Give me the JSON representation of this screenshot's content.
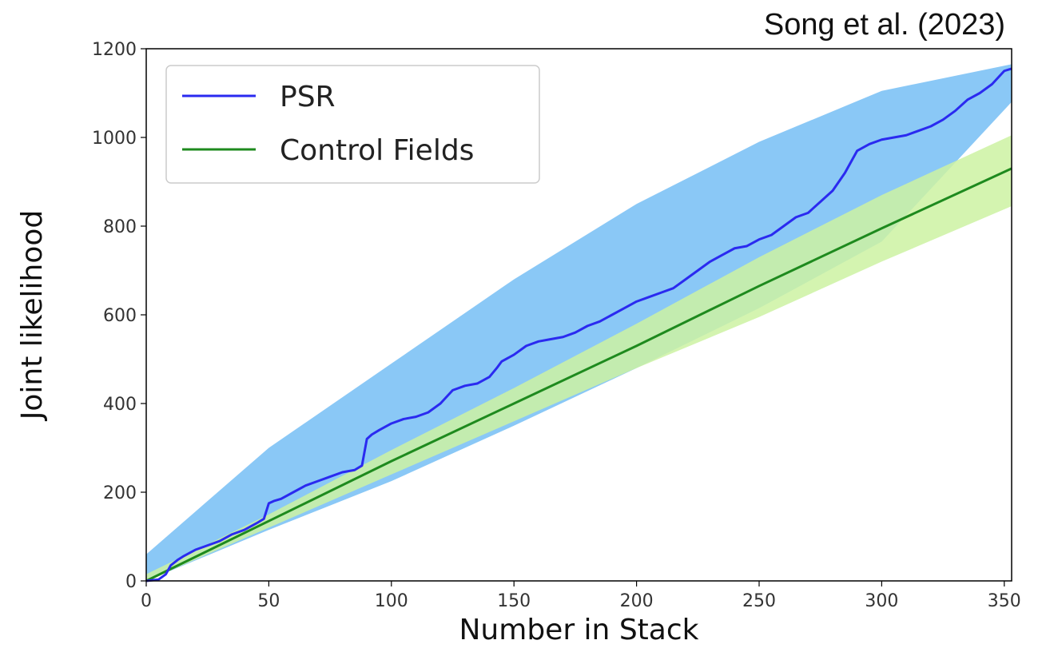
{
  "citation": "Song et al. (2023)",
  "chart_data": {
    "type": "line",
    "xlabel": "Number in Stack",
    "ylabel": "Joint likelihood",
    "xlim": [
      0,
      353
    ],
    "ylim": [
      0,
      1200
    ],
    "xticks": [
      0,
      50,
      100,
      150,
      200,
      250,
      300,
      350
    ],
    "yticks": [
      0,
      200,
      400,
      600,
      800,
      1000,
      1200
    ],
    "legend_position": "top-left",
    "grid": false,
    "series": [
      {
        "name": "PSR",
        "color": "#2a2af0",
        "x": [
          0,
          5,
          8,
          10,
          13,
          15,
          20,
          25,
          30,
          35,
          40,
          45,
          48,
          50,
          52,
          55,
          60,
          65,
          70,
          75,
          80,
          85,
          88,
          90,
          92,
          95,
          100,
          105,
          110,
          115,
          120,
          125,
          130,
          135,
          140,
          143,
          145,
          150,
          155,
          160,
          165,
          170,
          175,
          180,
          185,
          190,
          195,
          200,
          205,
          210,
          215,
          220,
          225,
          230,
          235,
          240,
          245,
          250,
          255,
          260,
          265,
          270,
          275,
          280,
          285,
          290,
          295,
          300,
          305,
          310,
          315,
          320,
          325,
          330,
          335,
          340,
          345,
          350,
          353
        ],
        "values": [
          0,
          3,
          15,
          35,
          48,
          55,
          70,
          80,
          90,
          105,
          115,
          130,
          140,
          175,
          180,
          185,
          200,
          215,
          225,
          235,
          245,
          250,
          260,
          320,
          330,
          340,
          355,
          365,
          370,
          380,
          400,
          430,
          440,
          445,
          460,
          480,
          495,
          510,
          530,
          540,
          545,
          550,
          560,
          575,
          585,
          600,
          615,
          630,
          640,
          650,
          660,
          680,
          700,
          720,
          735,
          750,
          755,
          770,
          780,
          800,
          820,
          830,
          855,
          880,
          920,
          970,
          985,
          995,
          1000,
          1005,
          1015,
          1025,
          1040,
          1060,
          1085,
          1100,
          1120,
          1150,
          1155
        ]
      },
      {
        "name": "Control Fields",
        "color": "#1e8a1e",
        "x": [
          0,
          50,
          100,
          150,
          200,
          250,
          300,
          353
        ],
        "values": [
          0,
          135,
          270,
          400,
          530,
          665,
          795,
          930
        ]
      }
    ],
    "bands": [
      {
        "series": "PSR",
        "color": "#84c5f5",
        "x": [
          0,
          50,
          100,
          150,
          200,
          250,
          300,
          353
        ],
        "lower": [
          0,
          115,
          225,
          350,
          480,
          615,
          765,
          1080
        ],
        "upper": [
          60,
          300,
          490,
          680,
          850,
          990,
          1105,
          1165
        ]
      },
      {
        "series": "Control Fields",
        "color": "#cdf2a2",
        "x": [
          0,
          50,
          100,
          150,
          200,
          250,
          300,
          353
        ],
        "lower": [
          0,
          120,
          240,
          360,
          480,
          595,
          720,
          845
        ],
        "upper": [
          15,
          150,
          295,
          435,
          580,
          730,
          870,
          1005
        ]
      }
    ]
  }
}
